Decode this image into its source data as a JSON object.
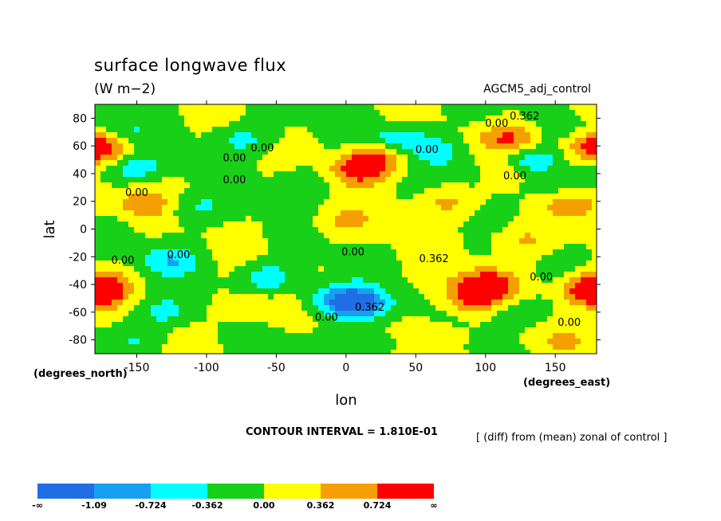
{
  "header": {
    "title": "surface longwave flux",
    "units": "(W m−2)",
    "dataset": "AGCM5_adj_control"
  },
  "footer": {
    "contour_interval": "CONTOUR INTERVAL = 1.810E-01",
    "description": "[ (diff) from (mean) zonal of control ]"
  },
  "chart_data": {
    "type": "heatmap",
    "xlabel": "lon",
    "ylabel": "lat",
    "x_unit_label": "(degrees_east)",
    "y_unit_label": "(degrees_north)",
    "xlim": [
      -180,
      180
    ],
    "ylim": [
      -90,
      90
    ],
    "x_ticks": [
      -150,
      -100,
      -50,
      0,
      50,
      100,
      150
    ],
    "y_ticks": [
      -80,
      -60,
      -40,
      -20,
      0,
      20,
      40,
      60,
      80
    ],
    "x_tick_labels": [
      "-150",
      "-100",
      "-50",
      "0",
      "50",
      "100",
      "150"
    ],
    "y_tick_labels": [
      "-80",
      "-60",
      "-40",
      "-20",
      "0",
      "20",
      "40",
      "60",
      "80"
    ],
    "contour_levels": [
      -1.09,
      -0.724,
      -0.362,
      0.0,
      0.362,
      0.724
    ],
    "colorbar": {
      "labels": [
        "-∞",
        "-1.09",
        "-0.724",
        "-0.362",
        "0.00",
        "0.362",
        "0.724",
        "∞"
      ],
      "colors": [
        "#1f6ee6",
        "#18a0f0",
        "#00ffff",
        "#18d018",
        "#ffff00",
        "#f5a000",
        "#ff0000"
      ]
    },
    "contour_labels": [
      {
        "text": "0.00",
        "lon": 108,
        "lat": 74
      },
      {
        "text": "0.362",
        "lon": 128,
        "lat": 79
      },
      {
        "text": "0.00",
        "lon": 58,
        "lat": 55
      },
      {
        "text": "0.00",
        "lon": -60,
        "lat": 56
      },
      {
        "text": "0.00",
        "lon": -80,
        "lat": 49
      },
      {
        "text": "0.00",
        "lon": -80,
        "lat": 33
      },
      {
        "text": "0.00",
        "lon": -150,
        "lat": 24
      },
      {
        "text": "0.00",
        "lon": 121,
        "lat": 36
      },
      {
        "text": "0.00",
        "lon": -120,
        "lat": -21
      },
      {
        "text": "0.00",
        "lon": -160,
        "lat": -25
      },
      {
        "text": "0.00",
        "lon": 5,
        "lat": -19
      },
      {
        "text": "0.362",
        "lon": 63,
        "lat": -24
      },
      {
        "text": "0.00",
        "lon": 140,
        "lat": -37
      },
      {
        "text": "0.362",
        "lon": 17,
        "lat": -59
      },
      {
        "text": "0.00",
        "lon": -14,
        "lat": -66
      },
      {
        "text": "0.00",
        "lon": 160,
        "lat": -70
      }
    ],
    "anomaly_features": [
      {
        "lon": 120,
        "lat": 65,
        "value": 0.9
      },
      {
        "lon": 175,
        "lat": 62,
        "value": 0.8
      },
      {
        "lon": 100,
        "lat": -40,
        "value": 1.0
      },
      {
        "lon": 90,
        "lat": -50,
        "value": 0.7
      },
      {
        "lon": 176,
        "lat": -45,
        "value": 0.85
      },
      {
        "lon": -178,
        "lat": -42,
        "value": 0.8
      },
      {
        "lon": 8,
        "lat": 42,
        "value": 0.85
      },
      {
        "lon": 20,
        "lat": 52,
        "value": 0.8
      },
      {
        "lon": -145,
        "lat": 18,
        "value": 0.55
      },
      {
        "lon": 70,
        "lat": 20,
        "value": 0.5
      },
      {
        "lon": 112,
        "lat": 42,
        "value": 0.45
      },
      {
        "lon": 165,
        "lat": 18,
        "value": 0.5
      },
      {
        "lon": -170,
        "lat": 55,
        "value": 0.55
      },
      {
        "lon": 125,
        "lat": -8,
        "value": 0.45
      },
      {
        "lon": 0,
        "lat": 5,
        "value": 0.35
      },
      {
        "lon": -70,
        "lat": -58,
        "value": 0.45
      },
      {
        "lon": 10,
        "lat": -55,
        "value": -1.1
      },
      {
        "lon": -5,
        "lat": -50,
        "value": -0.85
      },
      {
        "lon": 40,
        "lat": 65,
        "value": -0.75
      },
      {
        "lon": -155,
        "lat": 45,
        "value": -0.65
      },
      {
        "lon": 130,
        "lat": 50,
        "value": -0.65
      },
      {
        "lon": -125,
        "lat": -22,
        "value": -0.6
      },
      {
        "lon": -55,
        "lat": -35,
        "value": -0.6
      },
      {
        "lon": -75,
        "lat": 65,
        "value": -0.5
      },
      {
        "lon": -110,
        "lat": 15,
        "value": -0.45
      },
      {
        "lon": -130,
        "lat": -60,
        "value": -0.5
      },
      {
        "lon": 70,
        "lat": 55,
        "value": -0.45
      },
      {
        "lon": 95,
        "lat": 40,
        "value": -0.4
      },
      {
        "lon": 120,
        "lat": -60,
        "value": -0.4
      },
      {
        "lon": -30,
        "lat": 35,
        "value": -0.4
      },
      {
        "lon": 150,
        "lat": 30,
        "value": -0.35
      },
      {
        "lon": -160,
        "lat": 70,
        "value": -0.35
      },
      {
        "lon": 160,
        "lat": 70,
        "value": -0.35
      },
      {
        "lon": 20,
        "lat": -82,
        "value": -0.35
      },
      {
        "lon": -150,
        "lat": -80,
        "value": -0.3
      },
      {
        "lon": 60,
        "lat": -75,
        "value": 0.35
      },
      {
        "lon": 150,
        "lat": -80,
        "value": 0.3
      }
    ]
  }
}
